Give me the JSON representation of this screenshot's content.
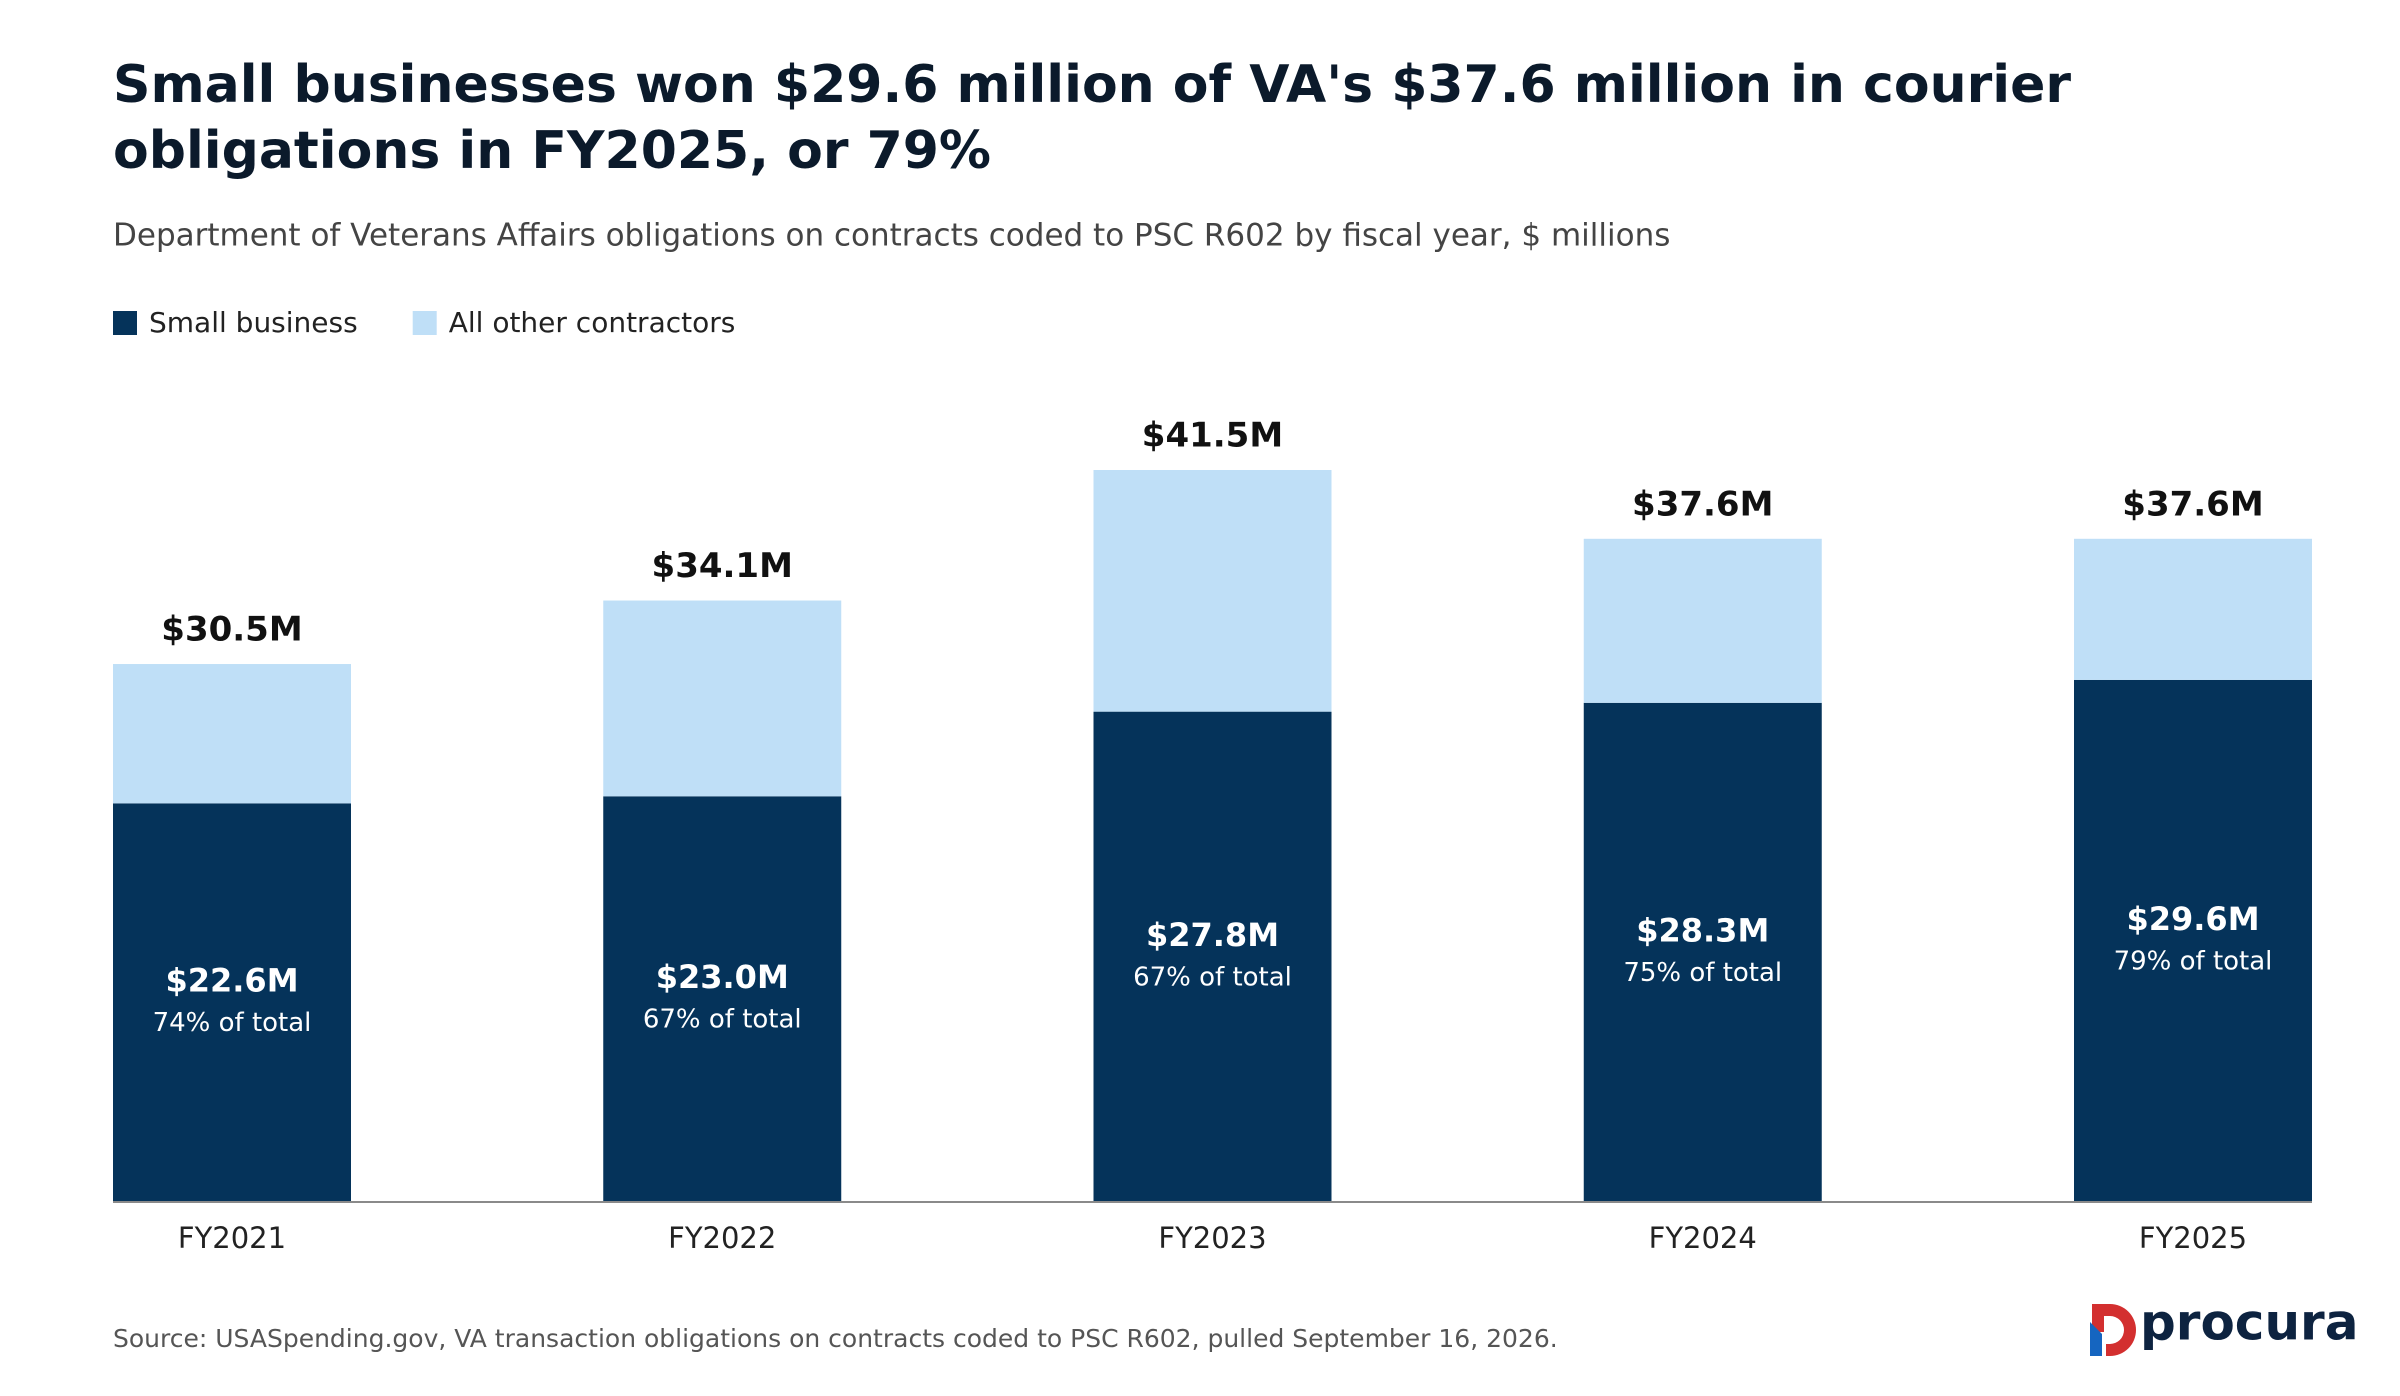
{
  "chart_data": {
    "type": "stacked_bar",
    "title": "Small businesses won $29.6 million of VA's $37.6 million in courier obligations in FY2025, or 79%",
    "subtitle": "Department of Veterans Affairs obligations on contracts coded to PSC R602 by fiscal year, $ millions",
    "categories": [
      "FY2021",
      "FY2022",
      "FY2023",
      "FY2024",
      "FY2025"
    ],
    "series": [
      {
        "name": "Small business",
        "color": "#05335a",
        "values": [
          22.6,
          23.0,
          27.8,
          28.3,
          29.6
        ],
        "value_labels": [
          "$22.6M",
          "$23.0M",
          "$27.8M",
          "$28.3M",
          "$29.6M"
        ]
      },
      {
        "name": "All other contractors",
        "color": "#bfdff7",
        "values": [
          7.9,
          11.1,
          13.7,
          9.3,
          8.0
        ]
      }
    ],
    "totals": {
      "values": [
        30.5,
        34.1,
        41.5,
        37.6,
        37.6
      ],
      "value_labels": [
        "$30.5M",
        "$34.1M",
        "$41.5M",
        "$37.6M",
        "$37.6M"
      ]
    },
    "shares": {
      "values": [
        74,
        67,
        67,
        75,
        79
      ],
      "value_labels": [
        "74% of total",
        "67% of total",
        "67% of total",
        "75% of total",
        "79% of total"
      ]
    },
    "source": "Source: USASpending.gov, VA transaction obligations on contracts coded to PSC R602, pulled September 16, 2026.",
    "logo": "procura"
  }
}
